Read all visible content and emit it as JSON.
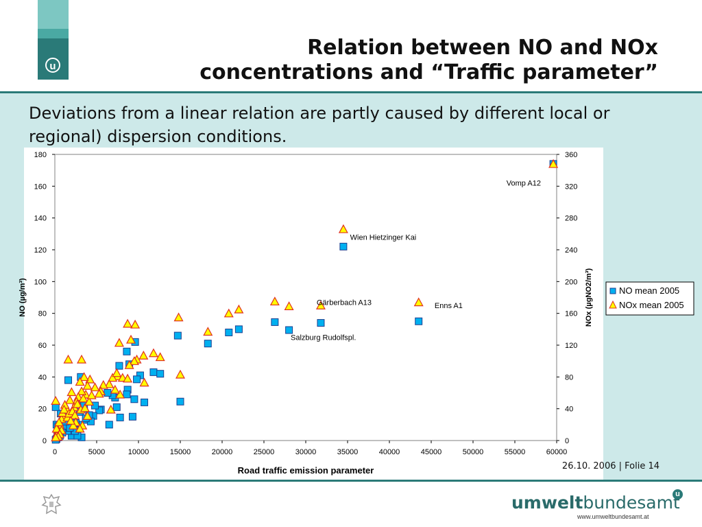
{
  "slide": {
    "title_line1": "Relation between NO and NOx",
    "title_line2": "concentrations and “Traffic parameter”",
    "subtitle": "Deviations from a linear relation are partly caused by different local or regional) dispersion conditions.",
    "footer": "26.10. 2006 | Folie 14",
    "brand_bold": "umwelt",
    "brand_regular": "bundesamt",
    "brand_url": "www.umweltbundesamt.at",
    "logo_letter": "u",
    "colors": {
      "teal_dark": "#2a7a78",
      "teal_light": "#5fb3ad",
      "content_bg": "#cde9e9"
    }
  },
  "chart_data": {
    "type": "scatter",
    "xlabel": "Road traffic emission parameter",
    "ylabel": "NO (µg/m³)",
    "y2label": "NOx (µgNO2/m³)",
    "xlim": [
      0,
      60000
    ],
    "ylim": [
      0,
      180
    ],
    "y2lim": [
      0,
      360
    ],
    "xticks": [
      "0",
      "5000",
      "10000",
      "15000",
      "20000",
      "25000",
      "30000",
      "35000",
      "40000",
      "45000",
      "50000",
      "55000",
      "60000"
    ],
    "yticks": [
      "0",
      "20",
      "40",
      "60",
      "80",
      "100",
      "120",
      "140",
      "160",
      "180"
    ],
    "y2ticks": [
      "0",
      "40",
      "80",
      "120",
      "160",
      "200",
      "240",
      "280",
      "320",
      "360"
    ],
    "grid": false,
    "legend_position": "right",
    "series": [
      {
        "name": "NO mean 2005",
        "axis": "left",
        "marker": "square",
        "color": "#00b0f0",
        "points": [
          [
            59600,
            174
          ],
          [
            34500,
            122
          ],
          [
            43500,
            75
          ],
          [
            26300,
            74.5
          ],
          [
            31800,
            74
          ],
          [
            28000,
            69.5
          ],
          [
            22000,
            70
          ],
          [
            20800,
            68
          ],
          [
            18300,
            61
          ],
          [
            14700,
            66
          ],
          [
            15000,
            24.5
          ],
          [
            8600,
            56
          ],
          [
            9600,
            62
          ],
          [
            7700,
            47
          ],
          [
            8900,
            48
          ],
          [
            10200,
            41
          ],
          [
            9800,
            38.5
          ],
          [
            11800,
            43
          ],
          [
            12600,
            42
          ],
          [
            10700,
            24
          ],
          [
            9500,
            26
          ],
          [
            9300,
            15
          ],
          [
            8700,
            32
          ],
          [
            8600,
            29
          ],
          [
            7200,
            27
          ],
          [
            6900,
            28.5
          ],
          [
            6300,
            30
          ],
          [
            7400,
            21
          ],
          [
            7800,
            14.5
          ],
          [
            6500,
            10
          ],
          [
            5500,
            19.5
          ],
          [
            5300,
            19
          ],
          [
            4800,
            22
          ],
          [
            4600,
            15.5
          ],
          [
            3100,
            40
          ],
          [
            1600,
            38
          ],
          [
            3200,
            25
          ],
          [
            3500,
            22
          ],
          [
            3800,
            13
          ],
          [
            3000,
            18
          ],
          [
            2800,
            10
          ],
          [
            2500,
            11
          ],
          [
            2200,
            4
          ],
          [
            2000,
            3
          ],
          [
            1500,
            6
          ],
          [
            1200,
            8
          ],
          [
            900,
            5
          ],
          [
            600,
            3
          ],
          [
            400,
            2
          ],
          [
            200,
            1
          ],
          [
            100,
            0.5
          ],
          [
            3200,
            2
          ],
          [
            2700,
            3
          ],
          [
            2400,
            6
          ],
          [
            1800,
            8
          ],
          [
            1300,
            12
          ],
          [
            1000,
            15
          ],
          [
            700,
            17
          ],
          [
            500,
            6
          ],
          [
            300,
            4
          ],
          [
            200,
            10
          ],
          [
            100,
            21
          ],
          [
            400,
            9
          ],
          [
            4100,
            16
          ],
          [
            4300,
            12
          ],
          [
            3700,
            14
          ]
        ]
      },
      {
        "name": "NOx mean 2005",
        "axis": "right",
        "marker": "triangle",
        "color": "#ffff00",
        "stroke": "#e03020",
        "points": [
          [
            59600,
            347
          ],
          [
            34500,
            265
          ],
          [
            43500,
            173
          ],
          [
            31800,
            169
          ],
          [
            28000,
            168
          ],
          [
            26300,
            174
          ],
          [
            22000,
            164
          ],
          [
            20800,
            159
          ],
          [
            18300,
            136
          ],
          [
            14800,
            154
          ],
          [
            15000,
            82
          ],
          [
            12600,
            104
          ],
          [
            11800,
            109
          ],
          [
            10600,
            106
          ],
          [
            10700,
            72
          ],
          [
            9800,
            101
          ],
          [
            9500,
            99
          ],
          [
            9600,
            145
          ],
          [
            8700,
            146
          ],
          [
            9100,
            126
          ],
          [
            8900,
            94
          ],
          [
            7700,
            122
          ],
          [
            7500,
            80
          ],
          [
            7800,
            57
          ],
          [
            6900,
            78
          ],
          [
            6500,
            70
          ],
          [
            6700,
            38
          ],
          [
            7200,
            63
          ],
          [
            7400,
            84
          ],
          [
            8100,
            78
          ],
          [
            8700,
            77
          ],
          [
            5800,
            69
          ],
          [
            5500,
            61
          ],
          [
            5300,
            58
          ],
          [
            4800,
            66
          ],
          [
            4200,
            76
          ],
          [
            3900,
            68
          ],
          [
            3500,
            79
          ],
          [
            3700,
            57
          ],
          [
            3200,
            61
          ],
          [
            3000,
            73
          ],
          [
            2800,
            54
          ],
          [
            2600,
            48
          ],
          [
            2300,
            41
          ],
          [
            2000,
            60
          ],
          [
            1800,
            50
          ],
          [
            1600,
            101
          ],
          [
            3200,
            101
          ],
          [
            1400,
            39
          ],
          [
            1200,
            44
          ],
          [
            1000,
            30
          ],
          [
            800,
            26
          ],
          [
            600,
            19
          ],
          [
            400,
            12
          ],
          [
            300,
            8
          ],
          [
            200,
            5
          ],
          [
            100,
            49
          ],
          [
            200,
            14
          ],
          [
            500,
            22
          ],
          [
            900,
            34
          ],
          [
            1100,
            38
          ],
          [
            1500,
            28
          ],
          [
            1700,
            33
          ],
          [
            2100,
            36
          ],
          [
            2400,
            31
          ],
          [
            2700,
            45
          ],
          [
            3100,
            38
          ],
          [
            3400,
            52
          ],
          [
            3600,
            40
          ],
          [
            3900,
            30
          ],
          [
            4100,
            48
          ],
          [
            4400,
            56
          ],
          [
            2500,
            22
          ],
          [
            2200,
            18
          ],
          [
            1900,
            24
          ],
          [
            3300,
            18
          ],
          [
            3000,
            14
          ],
          [
            800,
            12
          ],
          [
            600,
            7
          ],
          [
            400,
            4
          ],
          [
            100,
            3
          ]
        ]
      }
    ],
    "annotations": [
      {
        "text": "Vomp A12",
        "x": 54000,
        "y": 162
      },
      {
        "text": "Wien Hietzinger Kai",
        "x": 35300,
        "y": 128
      },
      {
        "text": "Gärberbach A13",
        "x": 31300,
        "y": 87
      },
      {
        "text": "Enns A1",
        "x": 45400,
        "y": 85
      },
      {
        "text": "Salzburg Rudolfspl.",
        "x": 28200,
        "y": 65
      }
    ]
  }
}
